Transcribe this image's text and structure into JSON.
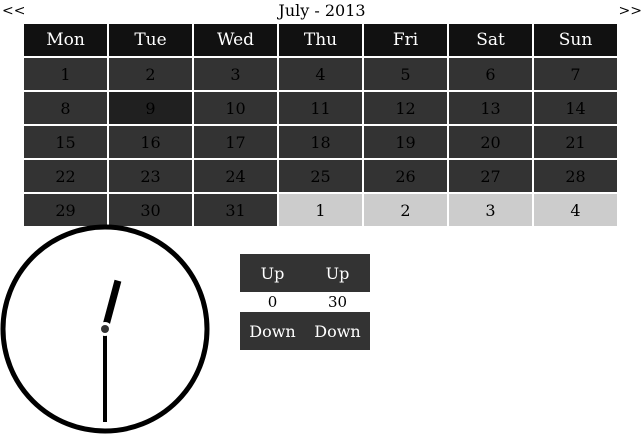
{
  "header": {
    "prev_label": "<<",
    "next_label": ">>",
    "title": "July - 2013"
  },
  "calendar": {
    "weekdays": [
      "Mon",
      "Tue",
      "Wed",
      "Thu",
      "Fri",
      "Sat",
      "Sun"
    ],
    "weeks": [
      [
        {
          "day": "1",
          "state": "cur"
        },
        {
          "day": "2",
          "state": "cur"
        },
        {
          "day": "3",
          "state": "cur"
        },
        {
          "day": "4",
          "state": "cur"
        },
        {
          "day": "5",
          "state": "cur"
        },
        {
          "day": "6",
          "state": "cur"
        },
        {
          "day": "7",
          "state": "cur"
        }
      ],
      [
        {
          "day": "8",
          "state": "cur"
        },
        {
          "day": "9",
          "state": "sel"
        },
        {
          "day": "10",
          "state": "cur"
        },
        {
          "day": "11",
          "state": "cur"
        },
        {
          "day": "12",
          "state": "cur"
        },
        {
          "day": "13",
          "state": "cur"
        },
        {
          "day": "14",
          "state": "cur"
        }
      ],
      [
        {
          "day": "15",
          "state": "cur"
        },
        {
          "day": "16",
          "state": "cur"
        },
        {
          "day": "17",
          "state": "cur"
        },
        {
          "day": "18",
          "state": "cur"
        },
        {
          "day": "19",
          "state": "cur"
        },
        {
          "day": "20",
          "state": "cur"
        },
        {
          "day": "21",
          "state": "cur"
        }
      ],
      [
        {
          "day": "22",
          "state": "cur"
        },
        {
          "day": "23",
          "state": "cur"
        },
        {
          "day": "24",
          "state": "cur"
        },
        {
          "day": "25",
          "state": "cur"
        },
        {
          "day": "26",
          "state": "cur"
        },
        {
          "day": "27",
          "state": "cur"
        },
        {
          "day": "28",
          "state": "cur"
        }
      ],
      [
        {
          "day": "29",
          "state": "cur"
        },
        {
          "day": "30",
          "state": "cur"
        },
        {
          "day": "31",
          "state": "cur"
        },
        {
          "day": "1",
          "state": "other"
        },
        {
          "day": "2",
          "state": "other"
        },
        {
          "day": "3",
          "state": "other"
        },
        {
          "day": "4",
          "state": "other"
        }
      ]
    ]
  },
  "clock": {
    "hours": 0,
    "minutes": 30
  },
  "time_controls": {
    "hour_up_label": "Up",
    "minute_up_label": "Up",
    "hour_value": "0",
    "minute_value": "30",
    "hour_down_label": "Down",
    "minute_down_label": "Down"
  },
  "colors": {
    "header_bg": "#111111",
    "day_bg": "#333333",
    "selected_bg": "#202020",
    "other_month_bg": "#cccccc",
    "button_bg": "#333333"
  }
}
